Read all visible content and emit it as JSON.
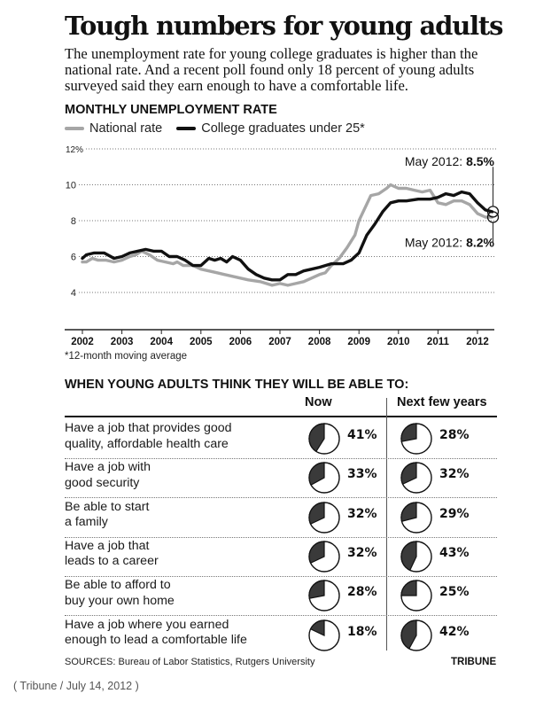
{
  "headline": "Tough numbers for young adults",
  "dek": "The unemployment rate for young college graduates is higher than the national rate. And a recent poll found only 18 percent of young adults surveyed said they earn enough to have a comfortable life.",
  "chart_section_title": "MONTHLY UNEMPLOYMENT RATE",
  "footnote": "*12-month moving average",
  "chart_data": {
    "type": "line",
    "title": "MONTHLY UNEMPLOYMENT RATE",
    "xlabel": "",
    "ylabel": "",
    "xlim": [
      2002,
      2012.42
    ],
    "ylim": [
      4,
      12
    ],
    "grid": true,
    "legend_position": "top-left",
    "x_ticks": [
      "2002",
      "2003",
      "2004",
      "2005",
      "2006",
      "2007",
      "2008",
      "2009",
      "2010",
      "2011",
      "2012"
    ],
    "y_ticks": [
      {
        "value": 12,
        "label": "12%"
      },
      {
        "value": 10,
        "label": "10"
      },
      {
        "value": 8,
        "label": "8"
      },
      {
        "value": 6,
        "label": "6"
      },
      {
        "value": 4,
        "label": "4"
      }
    ],
    "series": [
      {
        "name": "National rate",
        "color": "#a6a6a6",
        "points": [
          [
            2002.0,
            5.7
          ],
          [
            2002.1,
            5.7
          ],
          [
            2002.25,
            5.9
          ],
          [
            2002.4,
            5.8
          ],
          [
            2002.6,
            5.8
          ],
          [
            2002.8,
            5.7
          ],
          [
            2003.0,
            5.8
          ],
          [
            2003.2,
            6.0
          ],
          [
            2003.35,
            6.1
          ],
          [
            2003.5,
            6.3
          ],
          [
            2003.7,
            6.1
          ],
          [
            2003.9,
            5.8
          ],
          [
            2004.1,
            5.7
          ],
          [
            2004.3,
            5.6
          ],
          [
            2004.4,
            5.7
          ],
          [
            2004.55,
            5.5
          ],
          [
            2004.8,
            5.5
          ],
          [
            2005.0,
            5.3
          ],
          [
            2005.2,
            5.2
          ],
          [
            2005.4,
            5.1
          ],
          [
            2005.6,
            5.0
          ],
          [
            2005.8,
            4.9
          ],
          [
            2006.0,
            4.8
          ],
          [
            2006.2,
            4.7
          ],
          [
            2006.5,
            4.6
          ],
          [
            2006.8,
            4.4
          ],
          [
            2007.0,
            4.5
          ],
          [
            2007.2,
            4.4
          ],
          [
            2007.4,
            4.5
          ],
          [
            2007.6,
            4.6
          ],
          [
            2007.8,
            4.8
          ],
          [
            2008.0,
            5.0
          ],
          [
            2008.15,
            5.1
          ],
          [
            2008.3,
            5.5
          ],
          [
            2008.5,
            5.9
          ],
          [
            2008.7,
            6.5
          ],
          [
            2008.9,
            7.2
          ],
          [
            2009.0,
            8.0
          ],
          [
            2009.15,
            8.7
          ],
          [
            2009.3,
            9.4
          ],
          [
            2009.5,
            9.5
          ],
          [
            2009.7,
            9.8
          ],
          [
            2009.8,
            10.0
          ],
          [
            2010.0,
            9.8
          ],
          [
            2010.2,
            9.8
          ],
          [
            2010.4,
            9.7
          ],
          [
            2010.6,
            9.6
          ],
          [
            2010.8,
            9.7
          ],
          [
            2011.0,
            9.0
          ],
          [
            2011.2,
            8.9
          ],
          [
            2011.4,
            9.1
          ],
          [
            2011.6,
            9.1
          ],
          [
            2011.8,
            8.9
          ],
          [
            2012.0,
            8.4
          ],
          [
            2012.2,
            8.2
          ],
          [
            2012.37,
            8.2
          ]
        ]
      },
      {
        "name": "College graduates under 25*",
        "color": "#111111",
        "points": [
          [
            2002.0,
            5.9
          ],
          [
            2002.1,
            6.1
          ],
          [
            2002.3,
            6.2
          ],
          [
            2002.55,
            6.2
          ],
          [
            2002.8,
            5.9
          ],
          [
            2003.0,
            6.0
          ],
          [
            2003.2,
            6.2
          ],
          [
            2003.4,
            6.3
          ],
          [
            2003.6,
            6.4
          ],
          [
            2003.8,
            6.3
          ],
          [
            2004.0,
            6.3
          ],
          [
            2004.2,
            6.0
          ],
          [
            2004.4,
            6.0
          ],
          [
            2004.6,
            5.8
          ],
          [
            2004.8,
            5.5
          ],
          [
            2005.0,
            5.5
          ],
          [
            2005.2,
            5.9
          ],
          [
            2005.35,
            5.8
          ],
          [
            2005.5,
            5.9
          ],
          [
            2005.65,
            5.7
          ],
          [
            2005.8,
            6.0
          ],
          [
            2006.0,
            5.8
          ],
          [
            2006.2,
            5.3
          ],
          [
            2006.4,
            5.0
          ],
          [
            2006.6,
            4.8
          ],
          [
            2006.8,
            4.7
          ],
          [
            2007.0,
            4.7
          ],
          [
            2007.2,
            5.0
          ],
          [
            2007.4,
            5.0
          ],
          [
            2007.6,
            5.2
          ],
          [
            2007.8,
            5.3
          ],
          [
            2008.0,
            5.4
          ],
          [
            2008.3,
            5.6
          ],
          [
            2008.6,
            5.6
          ],
          [
            2008.8,
            5.8
          ],
          [
            2009.0,
            6.2
          ],
          [
            2009.2,
            7.2
          ],
          [
            2009.4,
            7.8
          ],
          [
            2009.6,
            8.5
          ],
          [
            2009.8,
            9.0
          ],
          [
            2010.0,
            9.1
          ],
          [
            2010.2,
            9.1
          ],
          [
            2010.5,
            9.2
          ],
          [
            2010.8,
            9.2
          ],
          [
            2011.0,
            9.3
          ],
          [
            2011.2,
            9.5
          ],
          [
            2011.4,
            9.4
          ],
          [
            2011.6,
            9.6
          ],
          [
            2011.8,
            9.5
          ],
          [
            2012.0,
            9.0
          ],
          [
            2012.2,
            8.6
          ],
          [
            2012.37,
            8.5
          ]
        ]
      }
    ],
    "annotations": [
      {
        "prefix": "May 2012: ",
        "value": "8.5%",
        "series": "College graduates under 25*",
        "x": 2012.37,
        "y": 8.5
      },
      {
        "prefix": "May 2012: ",
        "value": "8.2%",
        "series": "National rate",
        "x": 2012.37,
        "y": 8.2
      }
    ]
  },
  "table": {
    "title": "WHEN YOUNG ADULTS THINK THEY WILL BE ABLE TO:",
    "columns": [
      "Now",
      "Next few years"
    ],
    "rows": [
      {
        "label_line1": "Have a job that provides good",
        "label_line2": "quality, affordable health care",
        "now": 41,
        "now_label": "41%",
        "next": 28,
        "next_label": "28%"
      },
      {
        "label_line1": "Have a job with",
        "label_line2": "good security",
        "now": 33,
        "now_label": "33%",
        "next": 32,
        "next_label": "32%"
      },
      {
        "label_line1": "Be able to start",
        "label_line2": "a family",
        "now": 32,
        "now_label": "32%",
        "next": 29,
        "next_label": "29%"
      },
      {
        "label_line1": "Have a job that",
        "label_line2": "leads to a career",
        "now": 32,
        "now_label": "32%",
        "next": 43,
        "next_label": "43%"
      },
      {
        "label_line1": "Be able to afford to",
        "label_line2": "buy your own home",
        "now": 28,
        "now_label": "28%",
        "next": 25,
        "next_label": "25%"
      },
      {
        "label_line1": "Have a job where you earned",
        "label_line2": "enough to lead a comfortable life",
        "now": 18,
        "now_label": "18%",
        "next": 42,
        "next_label": "42%"
      }
    ]
  },
  "sources": "SOURCES: Bureau of Labor Statistics, Rutgers University",
  "brand": "TRIBUNE",
  "caption": "( Tribune / July 14, 2012 )"
}
